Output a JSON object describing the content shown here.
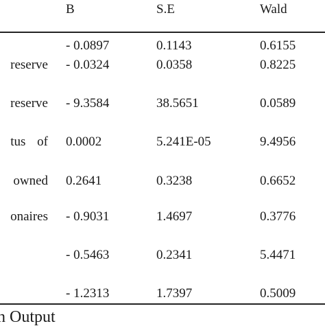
{
  "table": {
    "headers": {
      "b": "B",
      "se": "S.E",
      "wald": "Wald"
    },
    "rows": [
      {
        "label": "",
        "b": "- 0.0897",
        "se": "0.1143",
        "wald": "0.6155"
      },
      {
        "label": "reserve",
        "b": "- 0.0324",
        "se": "0.0358",
        "wald": "0.8225"
      },
      {
        "label": "reserve",
        "b": "- 9.3584",
        "se": "38.5651",
        "wald": "0.0589"
      },
      {
        "label": "tus    of",
        "b": "0.0002",
        "se": "5.241E-05",
        "wald": "9.4956"
      },
      {
        "label": "owned",
        "b": "0.2641",
        "se": "0.3238",
        "wald": "0.6652"
      },
      {
        "label": "onaires",
        "b": "- 0.9031",
        "se": "1.4697",
        "wald": "0.3776"
      },
      {
        "label": "",
        "b": "- 0.5463",
        "se": "0.2341",
        "wald": "5.4471"
      },
      {
        "label": "",
        "b": "- 1.2313",
        "se": "1.7397",
        "wald": "0.5009"
      }
    ]
  },
  "caption": "n Output"
}
